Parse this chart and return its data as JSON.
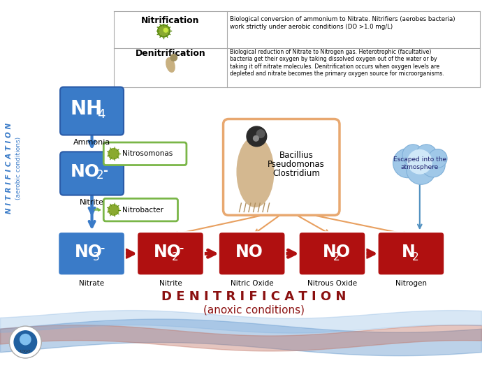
{
  "title_top": "Nitrification",
  "title_top2": "Denitrification",
  "nitrification_desc": "Biological conversion of ammonium to Nitrate. Nitrifiers (aerobes bacteria)\nwork strictly under aerobic conditions (DO >1.0 mg/L)",
  "denitrification_desc": "Biological reduction of Nitrate to Nitrogen gas. Heterotrophic (facultative)\nbacteria get their oxygen by taking dissolved oxygen out of the water or by\ntaking it off nitrate molecules. Denitrification occurs when oxygen levels are\ndepleted and nitrate becomes the primary oxygen source for microorganisms.",
  "left_label_line1": "N I T R I F I C A T I O N",
  "left_label_line2": "(aerobic conditions)",
  "ammonia": "Ammonia",
  "nitrosomonas": "Nitrosomonas",
  "nitrite_top": "Nitrite",
  "nitrobacter": "Nitrobacter",
  "bacteria_box_line1": "Bacillius",
  "bacteria_box_line2": "Pseudomonas",
  "bacteria_box_line3": "Clostridium",
  "cloud_line1": "Escaped into the",
  "cloud_line2": "atmosphere",
  "bottom_boxes": [
    {
      "label": "NO3",
      "sup": "-",
      "sublabel": "Nitrate",
      "color": "#3a7bc8"
    },
    {
      "label": "NO2",
      "sup": "-",
      "sublabel": "Nitrite",
      "color": "#b01010"
    },
    {
      "label": "NO",
      "sup": "",
      "sublabel": "Nitric Oxide",
      "color": "#b01010"
    },
    {
      "label": "N2O",
      "sup": "",
      "sublabel": "Nitrous Oxide",
      "color": "#b01010"
    },
    {
      "label": "N2",
      "sup": "",
      "sublabel": "Nitrogen",
      "color": "#b01010"
    }
  ],
  "denitrif_bottom_line1": "D E N I T R I F I C A T I O N",
  "denitrif_bottom_line2": "(anoxic conditions)",
  "bg_color": "#ffffff",
  "blue_color": "#3a7bc8",
  "red_color": "#b01010",
  "dark_red_color": "#8b0000",
  "green_box_color": "#7ab648",
  "orange_box_color": "#e8a060",
  "cloud_blue": "#a0c8e8"
}
